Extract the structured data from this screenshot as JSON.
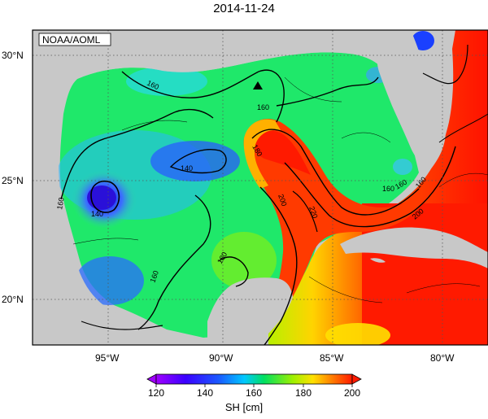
{
  "title": "2014-11-24",
  "credit": "NOAA/AOML",
  "lat_labels": [
    "30°N",
    "25°N",
    "20°N"
  ],
  "lon_labels": [
    "95°W",
    "90°W",
    "85°W",
    "80°W"
  ],
  "colorbar": {
    "label": "SH [cm]",
    "ticks": [
      "120",
      "140",
      "160",
      "180",
      "200"
    ],
    "range": [
      120,
      200
    ],
    "extend": "both"
  },
  "contour_labels": [
    "160",
    "160",
    "180",
    "200",
    "220",
    "160",
    "200",
    "140",
    "140",
    "160",
    "160",
    "180",
    "160",
    "160"
  ],
  "colors": {
    "land": "#c8c8c8",
    "low": "#1a1aff",
    "mid": "#00e060",
    "high": "#ff1a00"
  },
  "marker": "triangle"
}
